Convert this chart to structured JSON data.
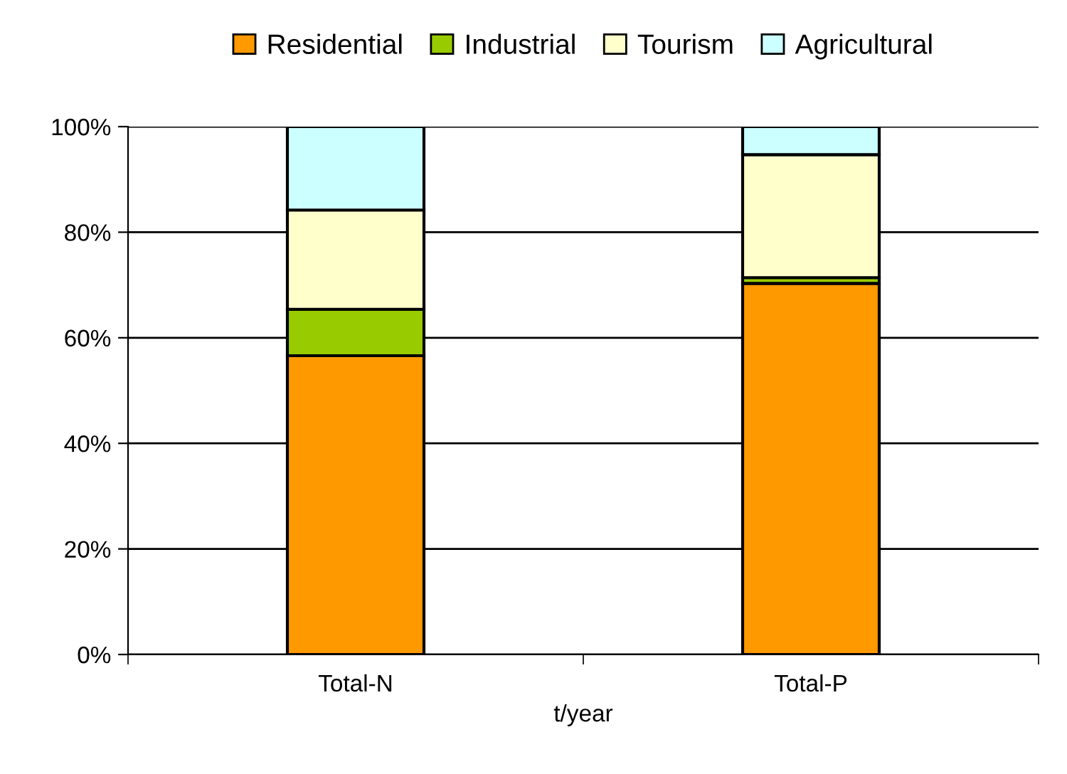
{
  "chart_data": {
    "type": "bar",
    "stacked": true,
    "xlabel": "t/year",
    "categories": [
      "Total-N",
      "Total-P"
    ],
    "series": [
      {
        "name": "Residential",
        "color": "#ff9900",
        "values": [
          56.6,
          70.3
        ]
      },
      {
        "name": "Industrial",
        "color": "#99cc00",
        "values": [
          8.8,
          1.1
        ]
      },
      {
        "name": "Tourism",
        "color": "#ffffcc",
        "values": [
          18.8,
          23.3
        ]
      },
      {
        "name": "Agricultural",
        "color": "#ccffff",
        "values": [
          15.8,
          5.3
        ]
      }
    ],
    "ylim": [
      0,
      100
    ],
    "yticks": [
      {
        "value": 0,
        "label": "0%"
      },
      {
        "value": 20,
        "label": "20%"
      },
      {
        "value": 40,
        "label": "40%"
      },
      {
        "value": 60,
        "label": "60%"
      },
      {
        "value": 80,
        "label": "80%"
      },
      {
        "value": 100,
        "label": "100%"
      }
    ],
    "grid": "y",
    "legend": "top"
  }
}
